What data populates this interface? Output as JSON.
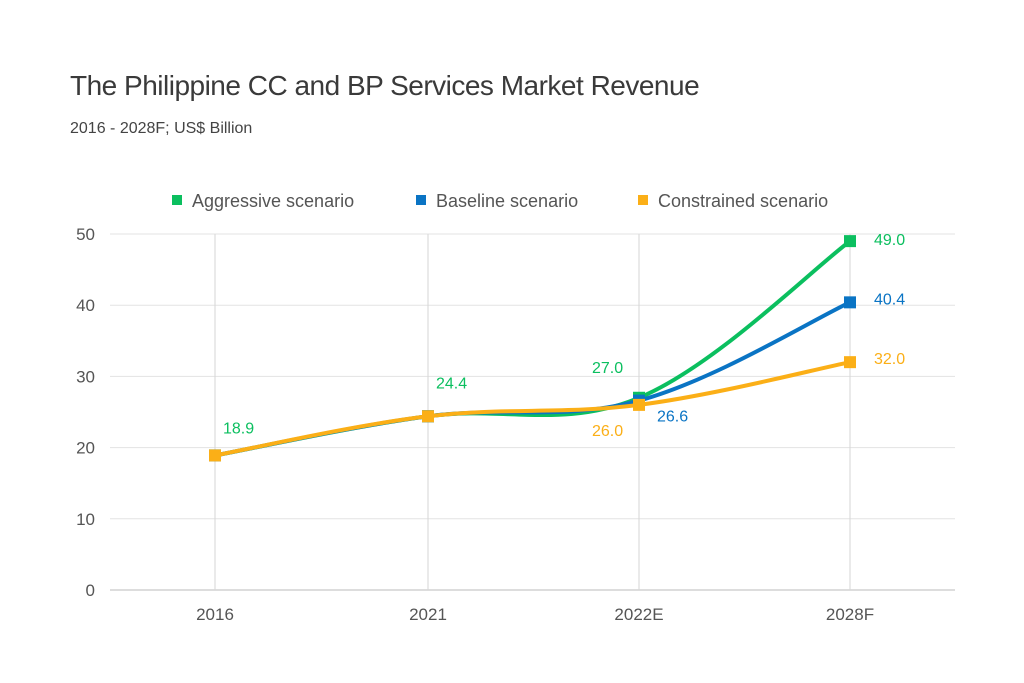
{
  "chart_data": {
    "type": "line",
    "title": "The Philippine CC and BP Services Market Revenue",
    "subtitle": "2016 - 2028F; US$ Billion",
    "categories": [
      "2016",
      "2021",
      "2022E",
      "2028F"
    ],
    "ylim": [
      0,
      50
    ],
    "yticks": [
      "0",
      "10",
      "20",
      "30",
      "40",
      "50"
    ],
    "grid": true,
    "legend_position": "top",
    "series": [
      {
        "name": "Aggressive scenario",
        "color": "#0BBF5F",
        "values": [
          18.9,
          24.4,
          27.0,
          49.0
        ],
        "labels": [
          "18.9",
          "24.4",
          "27.0",
          "49.0"
        ]
      },
      {
        "name": "Baseline scenario",
        "color": "#0A74C4",
        "values": [
          18.9,
          24.4,
          26.6,
          40.4
        ],
        "labels": [
          "",
          "",
          "26.6",
          "40.4"
        ]
      },
      {
        "name": "Constrained scenario",
        "color": "#FBAF17",
        "values": [
          18.9,
          24.4,
          26.0,
          32.0
        ],
        "labels": [
          "",
          "",
          "26.0",
          "32.0"
        ]
      }
    ]
  }
}
